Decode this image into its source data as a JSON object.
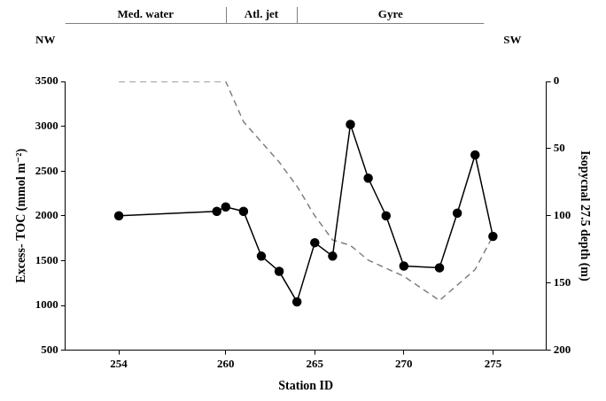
{
  "chart_data": {
    "type": "line",
    "annotations": {
      "left": "NW",
      "right": "SW",
      "regions": [
        {
          "label": "Med. water",
          "x": [
            251,
            260
          ]
        },
        {
          "label": "Atl. jet",
          "x": [
            260,
            264
          ]
        },
        {
          "label": "Gyre",
          "x": [
            264,
            274.5
          ]
        }
      ]
    },
    "x_label": "Station ID",
    "y_label": "Excess- TOC (mmol m⁻²)",
    "y2_label": "Isopycnal 27.5 depth (m)",
    "xlim": [
      251,
      278
    ],
    "xticks": [
      254,
      260,
      265,
      270,
      275
    ],
    "ylim": [
      500,
      3500
    ],
    "yticks": [
      500,
      1000,
      1500,
      2000,
      2500,
      3000,
      3500
    ],
    "y2lim": [
      200,
      0
    ],
    "y2ticks": [
      0,
      50,
      100,
      150,
      200
    ],
    "grid": false,
    "series": [
      {
        "color": "#000000",
        "marker": "circle",
        "line_style": "solid",
        "x": [
          254,
          259.5,
          260,
          261,
          262,
          263,
          264,
          265,
          266,
          267,
          268,
          269,
          270,
          272,
          273,
          274,
          275
        ],
        "values": [
          2000,
          2050,
          2100,
          2050,
          1550,
          1380,
          1040,
          1700,
          1550,
          3020,
          2420,
          2000,
          1440,
          1420,
          2030,
          2680,
          1770
        ]
      },
      {
        "color": "#808080",
        "marker": "none",
        "line_style": "dashed",
        "axis": "y2",
        "x": [
          254,
          260,
          261,
          263,
          264,
          265,
          266,
          267,
          268,
          270,
          272,
          274,
          275
        ],
        "values": [
          0,
          0,
          30,
          60,
          78,
          100,
          118,
          122,
          133,
          145,
          163,
          140,
          115
        ]
      }
    ]
  }
}
